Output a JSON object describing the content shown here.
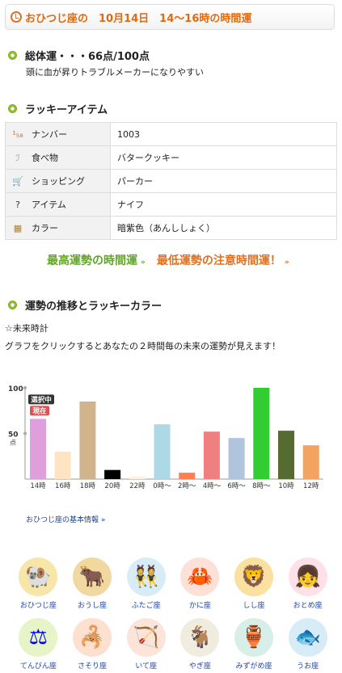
{
  "header": {
    "title": "おひつじ座の　10月14日　14〜16時の時間運"
  },
  "score": {
    "title": "総体運・・・66点/100点",
    "desc": "頭に血が昇りトラブルメーカーになりやすい"
  },
  "lucky": {
    "title": "ラッキーアイテム",
    "rows": [
      {
        "icon": "number-icon",
        "glyph": "¹₅₈",
        "color": "#e06a10",
        "label": "ナンバー",
        "value": "1003"
      },
      {
        "icon": "food-icon",
        "glyph": "ℐ",
        "color": "#999999",
        "label": "食べ物",
        "value": "バタークッキー"
      },
      {
        "icon": "shopping-cart-icon",
        "glyph": "🛒",
        "color": "#5588cc",
        "label": "ショッピング",
        "value": "パーカー"
      },
      {
        "icon": "item-question-icon",
        "glyph": "?",
        "color": "#333333",
        "label": "アイテム",
        "value": "ナイフ"
      },
      {
        "icon": "color-palette-icon",
        "glyph": "▦",
        "color": "#b08030",
        "label": "カラー",
        "value": "暗紫色（あんししょく）"
      }
    ]
  },
  "links": {
    "best": "最高運勢の時間運",
    "worst": "最低運勢の注意時間運！",
    "arrow": "»"
  },
  "trend": {
    "title": "運勢の推移とラッキーカラー",
    "future_label": "☆未来時計",
    "future_desc": "グラフをクリックするとあなたの２時間毎の未来の運勢が見えます！"
  },
  "chart_data": {
    "type": "bar",
    "categories": [
      "14時",
      "16時",
      "18時",
      "20時",
      "22時",
      "0時〜",
      "2時〜",
      "4時〜",
      "6時〜",
      "8時〜",
      "10時",
      "12時"
    ],
    "values": [
      66,
      30,
      85,
      10,
      3,
      60,
      7,
      52,
      45,
      100,
      53,
      37
    ],
    "colors": [
      "#dda0dd",
      "#ffe4c4",
      "#d2b48c",
      "#000000",
      "#fff0e0",
      "#add8e6",
      "#ff7f50",
      "#f08080",
      "#b0c4de",
      "#32cd32",
      "#556b2f",
      "#f4a460"
    ],
    "ylim": [
      0,
      100
    ],
    "yticks": [
      "100",
      "50"
    ],
    "ylabel": "点",
    "selected_label": "選択中",
    "current_label": "現在",
    "selected_color": "#333333",
    "current_color": "#e05050"
  },
  "base_link": "おひつじ座の基本情報 »",
  "signs": [
    {
      "name": "おひつじ座",
      "icon": "aries-icon",
      "glyph": "🐏",
      "bg": "#f6e6a8"
    },
    {
      "name": "おうし座",
      "icon": "taurus-icon",
      "glyph": "🐂",
      "bg": "#f0d8a0"
    },
    {
      "name": "ふたご座",
      "icon": "gemini-icon",
      "glyph": "👯",
      "bg": "#d8ecf8"
    },
    {
      "name": "かに座",
      "icon": "cancer-icon",
      "glyph": "🦀",
      "bg": "#fde0d8"
    },
    {
      "name": "しし座",
      "icon": "leo-icon",
      "glyph": "🦁",
      "bg": "#fbe0a0"
    },
    {
      "name": "おとめ座",
      "icon": "virgo-icon",
      "glyph": "👧",
      "bg": "#fde0e8"
    },
    {
      "name": "てんびん座",
      "icon": "libra-icon",
      "glyph": "⚖",
      "bg": "#e6f4c8"
    },
    {
      "name": "さそり座",
      "icon": "scorpio-icon",
      "glyph": "🦂",
      "bg": "#fde0d0"
    },
    {
      "name": "いて座",
      "icon": "sagittarius-icon",
      "glyph": "🏹",
      "bg": "#fde4d8"
    },
    {
      "name": "やぎ座",
      "icon": "capricorn-icon",
      "glyph": "🐐",
      "bg": "#f0ece0"
    },
    {
      "name": "みずがめ座",
      "icon": "aquarius-icon",
      "glyph": "🏺",
      "bg": "#d8eee8"
    },
    {
      "name": "うお座",
      "icon": "pisces-icon",
      "glyph": "🐟",
      "bg": "#d8ecf8"
    }
  ]
}
